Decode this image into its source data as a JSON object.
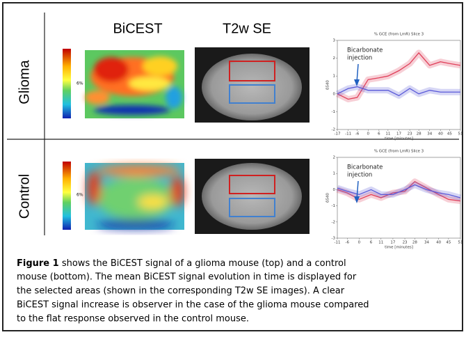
{
  "columns": [
    "BiCEST",
    "T2w SE"
  ],
  "rows": [
    {
      "label": "Glioma",
      "colorbar_label": "6%",
      "chart": {
        "type": "line",
        "title": "% GCE (from LmR) Slice 3",
        "x_label": "time [minutes]",
        "y_label": "δS40",
        "annotation": [
          "Bicarbonate",
          "injection"
        ],
        "x": [
          -17,
          -11,
          -6,
          0,
          6,
          11,
          17,
          23,
          28,
          34,
          40,
          45,
          51
        ],
        "series": [
          {
            "color": "#e0405a",
            "values": [
              0,
              -0.3,
              -0.2,
              0.8,
              0.9,
              1.0,
              1.3,
              1.7,
              2.3,
              1.6,
              1.8,
              1.7,
              1.6
            ]
          },
          {
            "color": "#5a5ad8",
            "values": [
              0,
              0.3,
              0.4,
              0.2,
              0.2,
              0.2,
              -0.1,
              0.3,
              0,
              0.2,
              0.1,
              0.1,
              0.1
            ]
          }
        ],
        "xlim": [
          -17,
          51
        ],
        "ylim": [
          -2,
          3
        ],
        "xticks": [
          -17,
          -11,
          -6,
          0,
          6,
          11,
          17,
          23,
          28,
          34,
          40,
          45,
          51
        ],
        "yticks": [
          -2,
          -1,
          0,
          1,
          2,
          3
        ]
      }
    },
    {
      "label": "Control",
      "colorbar_label": "6%",
      "chart": {
        "type": "line",
        "title": "% GCE (from LmR) Slice 3",
        "x_label": "time [minutes]",
        "y_label": "δS40",
        "annotation": [
          "Bicarbonate",
          "injection"
        ],
        "x": [
          -11,
          -6,
          0,
          6,
          11,
          17,
          23,
          28,
          34,
          40,
          45,
          51
        ],
        "series": [
          {
            "color": "#e0405a",
            "values": [
              0,
              -0.2,
              -0.6,
              -0.3,
              -0.5,
              -0.2,
              -0.1,
              0.5,
              0.1,
              -0.3,
              -0.6,
              -0.7
            ]
          },
          {
            "color": "#5a5ad8",
            "values": [
              0.1,
              -0.1,
              -0.3,
              0,
              -0.3,
              -0.3,
              0,
              0.3,
              0,
              -0.2,
              -0.3,
              -0.5
            ]
          }
        ],
        "xlim": [
          -11,
          51
        ],
        "ylim": [
          -3,
          2
        ],
        "xticks": [
          -11,
          -6,
          0,
          6,
          11,
          17,
          23,
          28,
          34,
          40,
          45,
          51
        ],
        "yticks": [
          -3,
          -2,
          -1,
          0,
          1,
          2
        ]
      }
    }
  ],
  "caption": {
    "label": "Figure 1",
    "lines": [
      "shows the BiCEST signal of a glioma mouse (top) and a control",
      "mouse (bottom).  The mean BiCEST signal evolution in time is displayed for",
      "the selected areas (shown in the corresponding T2w SE images). A clear",
      "BiCEST signal increase is observer in the case of the glioma mouse compared",
      "to the flat response observed in the control mouse."
    ]
  }
}
